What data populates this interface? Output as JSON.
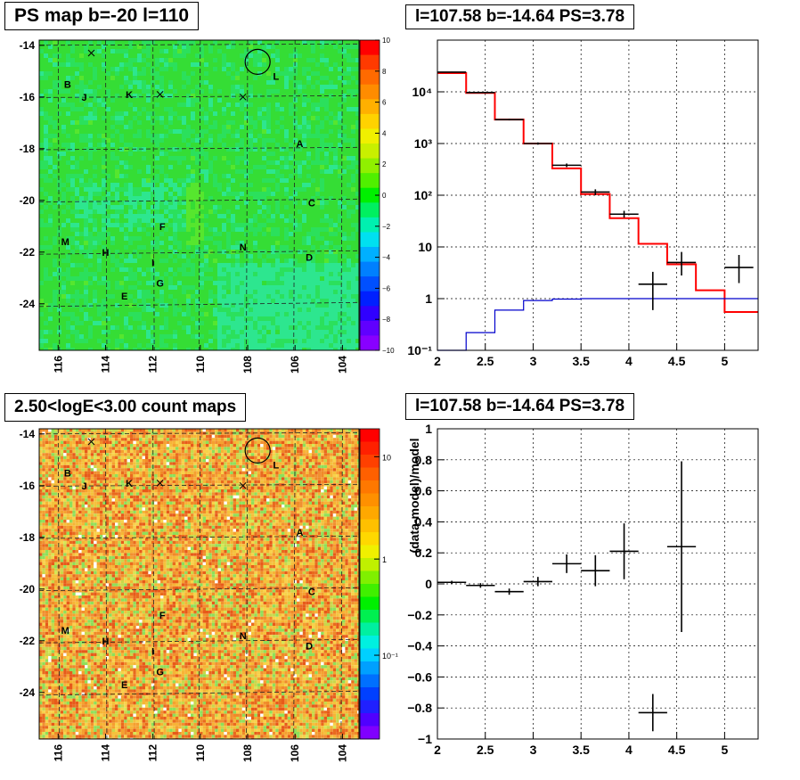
{
  "panels": {
    "ps_map": {
      "title": "PS map b=-20 l=110",
      "y_ticks": [
        "-14",
        "-16",
        "-18",
        "-20",
        "-22",
        "-24"
      ],
      "x_ticks": [
        "116",
        "114",
        "112",
        "110",
        "108",
        "106",
        "104"
      ],
      "colorbar_ticks": [
        "10",
        "8",
        "6",
        "4",
        "2",
        "0",
        "−2",
        "−4",
        "−6",
        "−8",
        "−10"
      ]
    },
    "count_map": {
      "title": "2.50<logE<3.00 count maps",
      "y_ticks": [
        "-14",
        "-16",
        "-18",
        "-20",
        "-22",
        "-24"
      ],
      "x_ticks": [
        "116",
        "114",
        "112",
        "110",
        "108",
        "106",
        "104"
      ],
      "colorbar_ticks": [
        "10",
        "1",
        "10⁻¹"
      ]
    },
    "spectrum": {
      "title": "l=107.58 b=-14.64 PS=3.78"
    },
    "residual": {
      "title": "l=107.58 b=-14.64 PS=3.78",
      "ylabel": "(data-model)/model"
    }
  },
  "source_labels": [
    {
      "text": "B",
      "l": 115.6,
      "b": -15.5
    },
    {
      "text": "J",
      "l": 114.9,
      "b": -16.0
    },
    {
      "text": "K",
      "l": 113.0,
      "b": -15.9
    },
    {
      "text": "L",
      "l": 106.8,
      "b": -15.2
    },
    {
      "text": "A",
      "l": 105.8,
      "b": -17.8
    },
    {
      "text": "C",
      "l": 105.3,
      "b": -20.1
    },
    {
      "text": "F",
      "l": 111.6,
      "b": -21.0
    },
    {
      "text": "M",
      "l": 115.7,
      "b": -21.6
    },
    {
      "text": "H",
      "l": 114.0,
      "b": -22.0
    },
    {
      "text": "N",
      "l": 108.2,
      "b": -21.8
    },
    {
      "text": "D",
      "l": 105.4,
      "b": -22.2
    },
    {
      "text": "I",
      "l": 112.0,
      "b": -22.4
    },
    {
      "text": "G",
      "l": 111.7,
      "b": -23.2
    },
    {
      "text": "E",
      "l": 113.2,
      "b": -23.7
    }
  ],
  "cross_markers": [
    {
      "l": 114.6,
      "b": -14.3
    },
    {
      "l": 111.7,
      "b": -15.9
    },
    {
      "l": 108.2,
      "b": -16.0
    }
  ],
  "circle_marker": {
    "l": 107.58,
    "b": -14.64
  },
  "chart_data": [
    {
      "type": "line",
      "title": "l=107.58 b=-14.64 PS=3.78",
      "xlim": [
        2,
        5.35
      ],
      "ylim": [
        0.1,
        100000
      ],
      "yscale": "log",
      "x_ticks": [
        "2",
        "2.5",
        "3",
        "3.5",
        "4",
        "4.5",
        "5"
      ],
      "y_ticks": [
        "10⁻¹",
        "1",
        "10",
        "10²",
        "10³",
        "10⁴"
      ],
      "grid": true,
      "series": [
        {
          "color": "#ff0000",
          "style": "step",
          "edges": [
            2,
            2.3,
            2.6,
            2.9,
            3.2,
            3.5,
            3.8,
            4.1,
            4.4,
            4.7,
            5.0,
            5.35
          ],
          "values": [
            23000,
            9500,
            2900,
            1000,
            330,
            105,
            36,
            11.5,
            4.6,
            1.45,
            0.55
          ]
        },
        {
          "color": "#0000cc",
          "style": "step",
          "edges": [
            2,
            2.3,
            2.6,
            2.9,
            3.2,
            3.5,
            3.8,
            4.1,
            4.4,
            4.7,
            5.0,
            5.35
          ],
          "values": [
            0.08,
            0.22,
            0.6,
            0.92,
            0.98,
            1.0,
            1.0,
            1.0,
            1.0,
            1.0,
            1.0
          ]
        },
        {
          "color": "#000000",
          "style": "errorbar",
          "points": [
            {
              "x": 2.15,
              "y": 24000,
              "xerr": 0.15,
              "ylo": 23500,
              "yhi": 24500
            },
            {
              "x": 2.45,
              "y": 9700,
              "xerr": 0.15,
              "ylo": 9500,
              "yhi": 9900
            },
            {
              "x": 2.75,
              "y": 2900,
              "xerr": 0.15,
              "ylo": 2800,
              "yhi": 3000
            },
            {
              "x": 3.05,
              "y": 1000,
              "xerr": 0.15,
              "ylo": 950,
              "yhi": 1050
            },
            {
              "x": 3.35,
              "y": 380,
              "xerr": 0.15,
              "ylo": 350,
              "yhi": 410
            },
            {
              "x": 3.65,
              "y": 115,
              "xerr": 0.15,
              "ylo": 100,
              "yhi": 130
            },
            {
              "x": 3.95,
              "y": 43,
              "xerr": 0.15,
              "ylo": 37,
              "yhi": 50
            },
            {
              "x": 4.25,
              "y": 1.9,
              "xerr": 0.15,
              "ylo": 0.6,
              "yhi": 3.3
            },
            {
              "x": 4.55,
              "y": 5.0,
              "xerr": 0.15,
              "ylo": 2.8,
              "yhi": 8.0
            },
            {
              "x": 5.15,
              "y": 4.0,
              "xerr": 0.15,
              "ylo": 2.0,
              "yhi": 7.0
            }
          ]
        }
      ]
    },
    {
      "type": "scatter",
      "title": "l=107.58 b=-14.64 PS=3.78",
      "ylabel": "(data-model)/model",
      "xlim": [
        2,
        5.35
      ],
      "ylim": [
        -1,
        1
      ],
      "x_ticks": [
        "2",
        "2.5",
        "3",
        "3.5",
        "4",
        "4.5",
        "5"
      ],
      "y_ticks": [
        "1",
        "0.8",
        "0.6",
        "0.4",
        "0.2",
        "0",
        "−0.2",
        "−0.4",
        "−0.6",
        "−0.8",
        "−1"
      ],
      "grid": true,
      "points": [
        {
          "x": 2.15,
          "y": 0.01,
          "xerr": 0.15,
          "yerr": 0.01
        },
        {
          "x": 2.45,
          "y": -0.01,
          "xerr": 0.15,
          "yerr": 0.015
        },
        {
          "x": 2.75,
          "y": -0.05,
          "xerr": 0.15,
          "yerr": 0.02
        },
        {
          "x": 3.05,
          "y": 0.015,
          "xerr": 0.15,
          "yerr": 0.03
        },
        {
          "x": 3.35,
          "y": 0.13,
          "xerr": 0.15,
          "yerr": 0.06
        },
        {
          "x": 3.65,
          "y": 0.085,
          "xerr": 0.15,
          "yerr": 0.1
        },
        {
          "x": 3.95,
          "y": 0.21,
          "xerr": 0.15,
          "yerr": 0.18
        },
        {
          "x": 4.25,
          "y": -0.83,
          "xerr": 0.15,
          "yerr": 0.12
        },
        {
          "x": 4.55,
          "y": 0.24,
          "xerr": 0.15,
          "yerr": 0.55
        }
      ]
    }
  ]
}
